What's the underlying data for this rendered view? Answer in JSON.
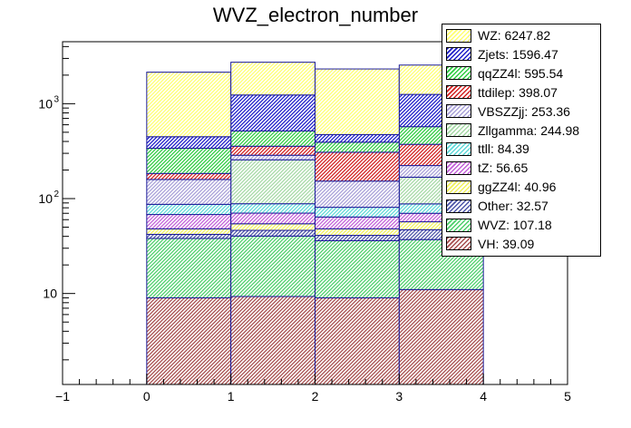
{
  "chart_data": {
    "type": "bar",
    "stacked": true,
    "title": "WVZ_electron_number",
    "xlabel": "",
    "ylabel": "",
    "x_bin_edges": [
      0,
      1,
      2,
      3,
      4
    ],
    "xlim": [
      -1,
      5
    ],
    "ylim": [
      1.1,
      4500
    ],
    "yscale": "log",
    "x_tick_labels": [
      "−1",
      "0",
      "1",
      "2",
      "3",
      "4",
      "5"
    ],
    "y_tick_labels": [
      "10",
      "10",
      "10"
    ],
    "y_tick_exponents": [
      "",
      "2",
      "3"
    ],
    "legend_position": "top-right",
    "series": [
      {
        "name": "VH",
        "label": "VH: 39.09",
        "color": "#a64d4d",
        "values": [
          9,
          9.3,
          9,
          11
        ]
      },
      {
        "name": "WVZ",
        "label": "WVZ: 107.18",
        "color": "#4ccf6a",
        "values": [
          29,
          31,
          27,
          26
        ]
      },
      {
        "name": "Other",
        "label": "Other: 32.57",
        "color": "#4d55a8",
        "values": [
          4,
          6,
          5,
          10
        ]
      },
      {
        "name": "ggZZ4l",
        "label": "ggZZ4l: 40.96",
        "color": "#f2f25a",
        "values": [
          6,
          8,
          7,
          10
        ]
      },
      {
        "name": "tZ",
        "label": "tZ: 56.65",
        "color": "#c261d8",
        "values": [
          20,
          16,
          16,
          13
        ]
      },
      {
        "name": "ttll",
        "label": "ttll: 84.39",
        "color": "#5fd8d8",
        "values": [
          19,
          18,
          17,
          18
        ]
      },
      {
        "name": "Zllgamma",
        "label": "Zllgamma: 244.98",
        "color": "#a6d9a6",
        "values": [
          0,
          168,
          0,
          80
        ]
      },
      {
        "name": "VBSZZjj",
        "label": "VBSZZjj: 253.36",
        "color": "#a8a0d8",
        "values": [
          72,
          30,
          72,
          55
        ]
      },
      {
        "name": "ttdilep",
        "label": "ttdilep: 398.07",
        "color": "#d22020",
        "values": [
          25,
          70,
          155,
          150
        ]
      },
      {
        "name": "qqZZ4l",
        "label": "qqZZ4l: 595.54",
        "color": "#2ecc40",
        "values": [
          155,
          160,
          85,
          200
        ]
      },
      {
        "name": "Zjets",
        "label": "Zjets: 1596.47",
        "color": "#1c1cc8",
        "values": [
          110,
          720,
          80,
          680
        ]
      },
      {
        "name": "WZ",
        "label": "WZ: 6247.82",
        "color": "#ffff70",
        "values": [
          1700,
          1500,
          1850,
          1300
        ]
      }
    ]
  }
}
